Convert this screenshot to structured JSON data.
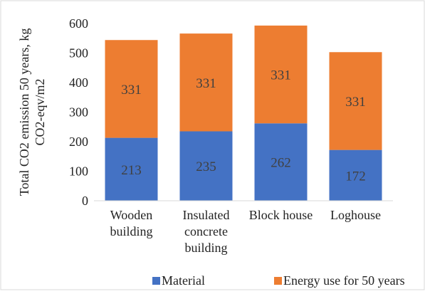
{
  "chart_data": {
    "type": "bar",
    "stacked": true,
    "categories": [
      [
        "Wooden",
        "building"
      ],
      [
        "Insulated",
        "concrete",
        "building"
      ],
      [
        "Block house"
      ],
      [
        "Loghouse"
      ]
    ],
    "series": [
      {
        "name": "Material",
        "values": [
          213,
          235,
          262,
          172
        ],
        "color": "#4472C4"
      },
      {
        "name": "Energy use for 50 years",
        "values": [
          331,
          331,
          331,
          331
        ],
        "color": "#ED7D31"
      }
    ],
    "ylabel": [
      "Total CO2 emission 50 years, kg",
      "CO2-eqv/m2"
    ],
    "ylim": [
      0,
      600
    ],
    "yticks": [
      0,
      100,
      200,
      300,
      400,
      500,
      600
    ],
    "grid": false,
    "legend": "bottom",
    "frame_color": "#d9d9d9"
  }
}
